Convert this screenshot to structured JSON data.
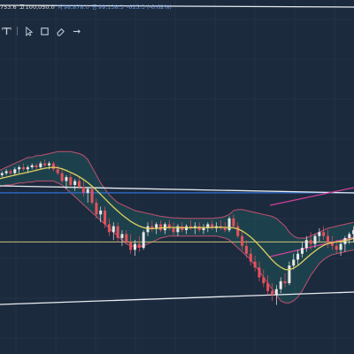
{
  "ohlc": {
    "open": "753.6",
    "high_label": "고",
    "high": "100,050.0",
    "low_label": "저",
    "low": "98,878.0",
    "close_label": "종",
    "close": "99,138.3",
    "change": "-615.3 (-0.62%)"
  },
  "toolbar": {
    "tools": [
      "text-tool-icon",
      "select-tool-icon",
      "rectangle-tool-icon",
      "eraser-tool-icon",
      "more-tool-icon"
    ]
  },
  "colors": {
    "background": "#1c2a3d",
    "grid": "#2b3a4f",
    "candle_up": "#e8e8e8",
    "candle_down": "#e8505a",
    "bollinger_band": "#c05070",
    "bollinger_fill": "#1f5d60",
    "moving_average": "#e0d060",
    "horizontal_line_blue": "#2f6fd0",
    "horizontal_line_yellow": "#c7c27a",
    "channel_line_white": "#e8ecf0",
    "channel_line_pink": "#d0409a"
  },
  "chart_data": {
    "type": "candlestick",
    "grid": true,
    "y_range": [
      0,
      100
    ],
    "series": [
      {
        "name": "",
        "type": "candle",
        "values": [
          [
            64,
            65,
            62,
            64
          ],
          [
            64,
            66,
            63,
            65
          ],
          [
            65,
            67,
            64,
            66
          ],
          [
            66,
            67,
            64,
            65
          ],
          [
            65,
            68,
            64,
            67
          ],
          [
            67,
            69,
            65,
            68
          ],
          [
            68,
            70,
            66,
            67
          ],
          [
            67,
            69,
            65,
            68
          ],
          [
            68,
            70,
            67,
            69
          ],
          [
            69,
            70,
            66,
            68
          ],
          [
            68,
            71,
            67,
            70
          ],
          [
            70,
            72,
            68,
            69
          ],
          [
            69,
            71,
            67,
            70
          ],
          [
            70,
            71,
            66,
            67
          ],
          [
            67,
            69,
            64,
            65
          ],
          [
            65,
            67,
            60,
            61
          ],
          [
            61,
            64,
            57,
            63
          ],
          [
            63,
            65,
            58,
            59
          ],
          [
            59,
            62,
            56,
            61
          ],
          [
            61,
            63,
            57,
            58
          ],
          [
            58,
            61,
            53,
            55
          ],
          [
            55,
            58,
            50,
            57
          ],
          [
            57,
            59,
            49,
            50
          ],
          [
            50,
            52,
            42,
            44
          ],
          [
            44,
            48,
            40,
            46
          ],
          [
            46,
            48,
            37,
            39
          ],
          [
            39,
            42,
            33,
            35
          ],
          [
            35,
            40,
            31,
            38
          ],
          [
            38,
            40,
            30,
            32
          ],
          [
            32,
            36,
            28,
            34
          ],
          [
            34,
            36,
            29,
            30
          ],
          [
            30,
            34,
            24,
            26
          ],
          [
            26,
            31,
            23,
            29
          ],
          [
            29,
            33,
            25,
            27
          ],
          [
            27,
            36,
            26,
            35
          ],
          [
            35,
            40,
            33,
            38
          ],
          [
            38,
            41,
            35,
            37
          ],
          [
            37,
            40,
            34,
            39
          ],
          [
            39,
            41,
            35,
            36
          ],
          [
            36,
            40,
            34,
            39
          ],
          [
            39,
            41,
            36,
            37
          ],
          [
            37,
            40,
            33,
            35
          ],
          [
            35,
            39,
            33,
            38
          ],
          [
            38,
            40,
            35,
            36
          ],
          [
            36,
            39,
            34,
            38
          ],
          [
            38,
            41,
            36,
            37
          ],
          [
            37,
            40,
            34,
            38
          ],
          [
            38,
            40,
            35,
            36
          ],
          [
            36,
            39,
            34,
            37
          ],
          [
            37,
            40,
            35,
            39
          ],
          [
            39,
            41,
            36,
            37
          ],
          [
            37,
            40,
            35,
            38
          ],
          [
            38,
            41,
            36,
            37
          ],
          [
            37,
            40,
            35,
            36
          ],
          [
            36,
            43,
            35,
            42
          ],
          [
            42,
            44,
            37,
            38
          ],
          [
            38,
            40,
            32,
            33
          ],
          [
            33,
            35,
            26,
            28
          ],
          [
            28,
            31,
            22,
            24
          ],
          [
            24,
            27,
            18,
            20
          ],
          [
            20,
            23,
            15,
            17
          ],
          [
            17,
            20,
            10,
            12
          ],
          [
            12,
            16,
            7,
            9
          ],
          [
            9,
            13,
            3,
            5
          ],
          [
            5,
            9,
            0,
            3
          ],
          [
            3,
            8,
            -2,
            6
          ],
          [
            6,
            12,
            4,
            10
          ],
          [
            10,
            14,
            7,
            9
          ],
          [
            9,
            20,
            8,
            18
          ],
          [
            18,
            24,
            16,
            21
          ],
          [
            21,
            26,
            18,
            24
          ],
          [
            24,
            30,
            22,
            27
          ],
          [
            27,
            33,
            25,
            31
          ],
          [
            31,
            35,
            26,
            29
          ],
          [
            29,
            34,
            27,
            33
          ],
          [
            33,
            37,
            30,
            35
          ],
          [
            35,
            38,
            31,
            33
          ],
          [
            33,
            36,
            27,
            30
          ],
          [
            30,
            33,
            26,
            28
          ],
          [
            28,
            31,
            24,
            26
          ],
          [
            26,
            30,
            23,
            29
          ],
          [
            29,
            33,
            25,
            32
          ],
          [
            32,
            35,
            29,
            34
          ],
          [
            34,
            38,
            30,
            36
          ]
        ]
      },
      {
        "name": "",
        "type": "ma",
        "values": [
          62,
          62.5,
          63,
          63.5,
          64,
          64.5,
          65,
          65.5,
          66,
          66.5,
          67,
          67.5,
          67.8,
          68,
          67.8,
          67.2,
          66.4,
          65.4,
          64.4,
          63.2,
          61.8,
          60.2,
          58.4,
          56.4,
          54.2,
          52,
          49.8,
          47.7,
          45.7,
          43.8,
          42.1,
          40.5,
          39.2,
          38.1,
          37.3,
          36.9,
          36.8,
          36.9,
          37.1,
          37.3,
          37.4,
          37.4,
          37.3,
          37.2,
          37.2,
          37.2,
          37.3,
          37.3,
          37.3,
          37.3,
          37.4,
          37.5,
          37.5,
          37.4,
          37.3,
          37.2,
          36.6,
          35.6,
          34.2,
          32.5,
          30.5,
          28.2,
          25.8,
          23.3,
          20.8,
          18.7,
          17.1,
          16,
          15.8,
          16.6,
          18,
          19.8,
          21.8,
          23.7,
          25.4,
          27,
          28.3,
          29.2,
          29.7,
          30,
          30.3,
          30.7,
          31.2,
          31.8
        ]
      },
      {
        "name": "",
        "type": "band_upper",
        "values": [
          66,
          67,
          68,
          69,
          70,
          71,
          72,
          73,
          73,
          74,
          74,
          74.5,
          75,
          75.5,
          76,
          76,
          76,
          76,
          75.5,
          75,
          74,
          72,
          68,
          64,
          60,
          57,
          54,
          52,
          50,
          49,
          48,
          47,
          46,
          45.5,
          45,
          44.5,
          44,
          43.5,
          43,
          42.8,
          42.5,
          42.3,
          42.2,
          42.1,
          42,
          42,
          42,
          42,
          42,
          42,
          42,
          42.2,
          42.5,
          43,
          44,
          46,
          46.5,
          46.5,
          46,
          45.5,
          45,
          44.5,
          44,
          43.5,
          43,
          42,
          40,
          38,
          35,
          33,
          32,
          32,
          32,
          33,
          34,
          35,
          36,
          37,
          37.5,
          38,
          38.5,
          39,
          39.5,
          40
        ]
      },
      {
        "name": "",
        "type": "band_lower",
        "values": [
          58,
          58.5,
          59,
          59,
          59.5,
          60,
          60,
          60.5,
          60.5,
          61,
          61,
          61,
          61,
          61,
          60,
          59,
          57,
          55,
          53,
          51,
          49,
          47,
          45,
          43,
          41,
          39,
          37,
          35,
          33,
          31,
          29,
          28,
          27.5,
          27.5,
          28,
          29,
          30,
          31,
          32,
          32.5,
          33,
          33,
          33,
          33,
          33,
          33,
          33,
          33,
          33,
          33,
          33,
          33,
          32.5,
          32,
          31,
          29,
          27,
          25,
          23,
          21,
          18,
          15,
          12,
          9,
          6,
          3,
          0,
          -1,
          -1,
          0,
          2,
          5,
          9,
          13,
          16,
          19,
          21,
          22.5,
          23.5,
          24,
          24.5,
          25,
          25.5,
          26
        ]
      }
    ],
    "horizontal_lines": [
      {
        "name": "",
        "value": 55
      },
      {
        "name": "",
        "value": 30
      }
    ]
  }
}
